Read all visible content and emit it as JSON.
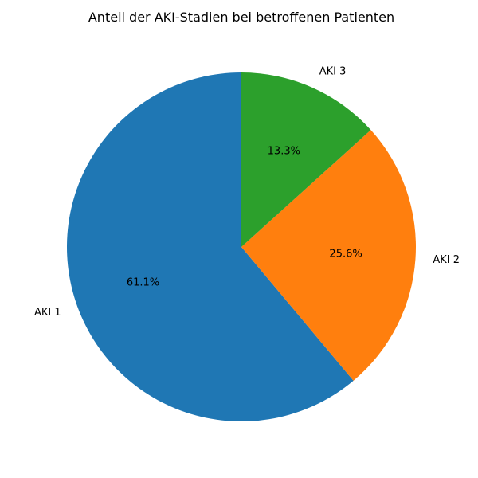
{
  "chart_data": {
    "type": "pie",
    "title": "Anteil der AKI-Stadien bei betroffenen Patienten",
    "slices": [
      {
        "label": "AKI 1",
        "value": 61.1,
        "pct_label": "61.1%",
        "color": "#1f77b4"
      },
      {
        "label": "AKI 2",
        "value": 25.6,
        "pct_label": "25.6%",
        "color": "#ff7f0e"
      },
      {
        "label": "AKI 3",
        "value": 13.3,
        "pct_label": "13.3%",
        "color": "#2ca02c"
      }
    ],
    "start_angle_deg": 90,
    "direction": "counterclockwise",
    "legend": "none"
  }
}
